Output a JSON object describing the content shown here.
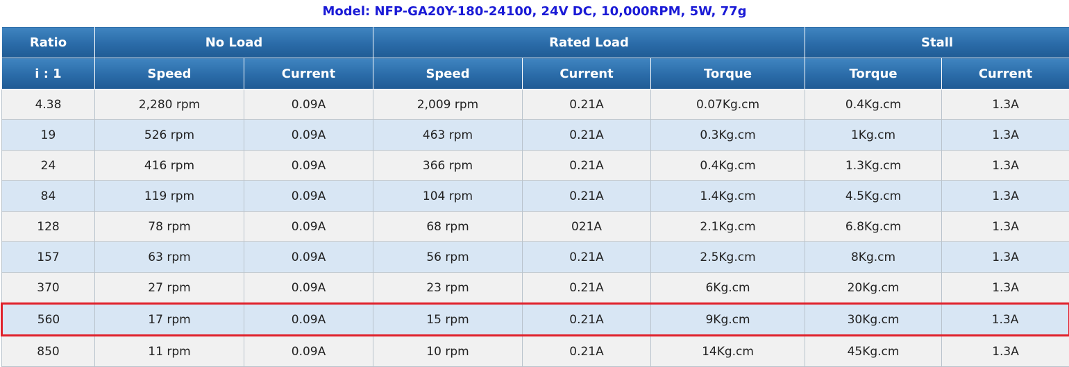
{
  "title": "Model: NFP-GA20Y-180-24100, 24V DC, 10,000RPM, 5W, 77g",
  "header_groups": {
    "ratio": "Ratio",
    "no_load": "No Load",
    "rated_load": "Rated Load",
    "stall": "Stall"
  },
  "columns": [
    "i : 1",
    "Speed",
    "Current",
    "Speed",
    "Current",
    "Torque",
    "Torque",
    "Current"
  ],
  "rows": [
    [
      "4.38",
      "2,280 rpm",
      "0.09A",
      "2,009 rpm",
      "0.21A",
      "0.07Kg.cm",
      "0.4Kg.cm",
      "1.3A"
    ],
    [
      "19",
      "526 rpm",
      "0.09A",
      "463 rpm",
      "0.21A",
      "0.3Kg.cm",
      "1Kg.cm",
      "1.3A"
    ],
    [
      "24",
      "416 rpm",
      "0.09A",
      "366 rpm",
      "0.21A",
      "0.4Kg.cm",
      "1.3Kg.cm",
      "1.3A"
    ],
    [
      "84",
      "119 rpm",
      "0.09A",
      "104 rpm",
      "0.21A",
      "1.4Kg.cm",
      "4.5Kg.cm",
      "1.3A"
    ],
    [
      "128",
      "78 rpm",
      "0.09A",
      "68 rpm",
      "021A",
      "2.1Kg.cm",
      "6.8Kg.cm",
      "1.3A"
    ],
    [
      "157",
      "63 rpm",
      "0.09A",
      "56 rpm",
      "0.21A",
      "2.5Kg.cm",
      "8Kg.cm",
      "1.3A"
    ],
    [
      "370",
      "27 rpm",
      "0.09A",
      "23 rpm",
      "0.21A",
      "6Kg.cm",
      "20Kg.cm",
      "1.3A"
    ],
    [
      "560",
      "17 rpm",
      "0.09A",
      "15 rpm",
      "0.21A",
      "9Kg.cm",
      "30Kg.cm",
      "1.3A"
    ],
    [
      "850",
      "11 rpm",
      "0.09A",
      "10 rpm",
      "0.21A",
      "14Kg.cm",
      "45Kg.cm",
      "1.3A"
    ]
  ],
  "highlighted_row_index": 7,
  "colors": {
    "title": "#1a1ad6",
    "header_bg": "#2a6ba8",
    "row_odd": "#f1f1f1",
    "row_even": "#d8e6f4",
    "highlight_border": "#e0202a"
  }
}
